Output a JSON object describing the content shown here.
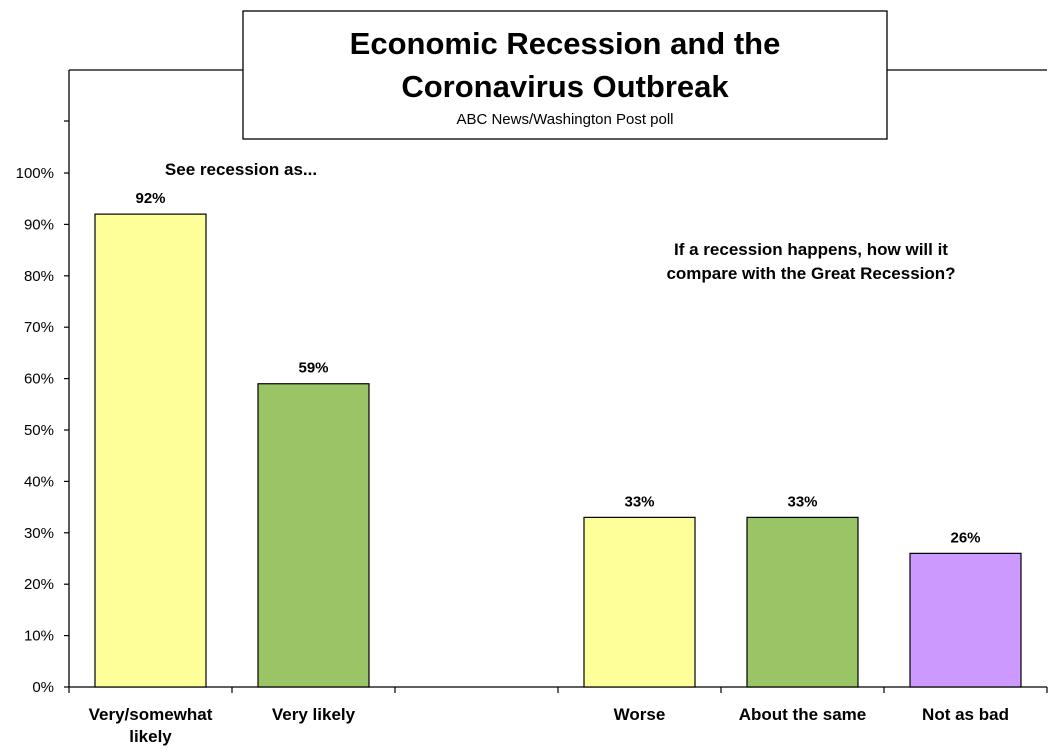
{
  "chart_data": {
    "type": "bar",
    "title_lines": [
      "Economic Recession and the",
      "Coronavirus Outbreak"
    ],
    "subtitle": "ABC News/Washington Post poll",
    "xlabel": "",
    "ylabel": "",
    "ylim": [
      0,
      100
    ],
    "yticks": [
      "0%",
      "10%",
      "20%",
      "30%",
      "40%",
      "50%",
      "60%",
      "70%",
      "80%",
      "90%",
      "100%"
    ],
    "yticks_values": [
      0,
      10,
      20,
      30,
      40,
      50,
      60,
      70,
      80,
      90,
      100
    ],
    "grid": false,
    "legend": "none",
    "categories": [
      [
        "Very/somewhat",
        "likely"
      ],
      [
        "Very likely"
      ],
      [
        ""
      ],
      [
        "Worse"
      ],
      [
        "About the same"
      ],
      [
        "Not as bad"
      ]
    ],
    "values": [
      92,
      59,
      null,
      33,
      33,
      26
    ],
    "data_labels": [
      "92%",
      "59%",
      "",
      "33%",
      "33%",
      "26%"
    ],
    "colors": [
      "#ffff99",
      "#99c566",
      null,
      "#ffff99",
      "#99c566",
      "#cc99ff"
    ],
    "annotations": {
      "left_group": [
        "See recession as..."
      ],
      "right_group": [
        "If a recession happens, how will it",
        "compare with the Great Recession?"
      ]
    }
  }
}
